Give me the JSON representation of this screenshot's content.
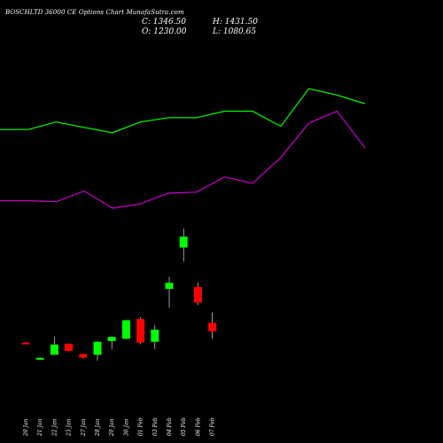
{
  "header": {
    "title": "BOSCHLTD 36000 CE Options Chart MunafaSutra.com",
    "c_label": "C: 1346.50",
    "o_label": "O: 1230.00",
    "h_label": "H: 1431.50",
    "l_label": "L: 1080.65"
  },
  "colors": {
    "background": "#000000",
    "up": "#00ff00",
    "down": "#ff0000",
    "line_upper": "#00ff00",
    "line_lower": "#cc00cc",
    "wick": "#ffffff"
  },
  "chart_data": {
    "type": "candlestick",
    "dates": [
      "20 Jan",
      "21 Jan",
      "22 Jan",
      "23 Jan",
      "27 Jan",
      "28 Jan",
      "29 Jan",
      "30 Jan",
      "01 Feb",
      "03 Feb",
      "04 Feb",
      "05 Feb",
      "06 Feb",
      "07 Feb"
    ],
    "candles": [
      {
        "o": 220,
        "h": 220,
        "l": 210,
        "c": 210
      },
      {
        "o": 45,
        "h": 64,
        "l": 40,
        "c": 57
      },
      {
        "o": 90,
        "h": 281,
        "l": 90,
        "c": 199
      },
      {
        "o": 208,
        "h": 211,
        "l": 128,
        "c": 130
      },
      {
        "o": 99,
        "h": 102,
        "l": 52,
        "c": 61
      },
      {
        "o": 90,
        "h": 237,
        "l": 27,
        "c": 228
      },
      {
        "o": 236,
        "h": 283,
        "l": 150,
        "c": 280
      },
      {
        "o": 260,
        "h": 463,
        "l": 255,
        "c": 457
      },
      {
        "o": 470,
        "h": 488,
        "l": 203,
        "c": 220
      },
      {
        "o": 228,
        "h": 406,
        "l": 149,
        "c": 357
      },
      {
        "o": 790,
        "h": 918,
        "l": 590,
        "c": 855
      },
      {
        "o": 1230,
        "h": 1431.5,
        "l": 1080.65,
        "c": 1346.5
      },
      {
        "o": 810,
        "h": 860,
        "l": 620,
        "c": 645
      },
      {
        "o": 430,
        "h": 540,
        "l": 260,
        "c": 340
      }
    ],
    "series": [
      {
        "values": [
          2.68,
          2.68,
          2.75,
          2.7,
          2.65,
          2.75,
          2.79,
          2.79,
          2.85,
          2.85,
          2.71,
          3.06,
          3.0,
          2.92
        ]
      },
      {
        "values": [
          2.02,
          2.02,
          2.01,
          2.11,
          1.95,
          1.99,
          2.09,
          2.1,
          2.24,
          2.18,
          2.42,
          2.74,
          2.85,
          2.51
        ]
      }
    ]
  }
}
